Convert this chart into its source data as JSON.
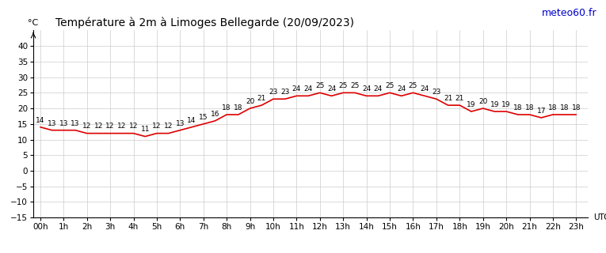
{
  "title": "Température à 2m à Limoges Bellegarde (20/09/2023)",
  "ylabel": "°C",
  "watermark": "meteo60.fr",
  "temperatures": [
    14,
    13,
    13,
    13,
    12,
    12,
    12,
    12,
    12,
    11,
    12,
    12,
    13,
    14,
    15,
    16,
    18,
    18,
    20,
    21,
    23,
    23,
    24,
    24,
    25,
    24,
    25,
    25,
    24,
    24,
    25,
    24,
    25,
    24,
    23,
    21,
    21,
    19,
    20,
    19,
    19,
    18,
    18,
    17,
    18,
    18,
    18
  ],
  "hours": [
    "00h",
    "1h",
    "2h",
    "3h",
    "4h",
    "5h",
    "6h",
    "7h",
    "8h",
    "9h",
    "10h",
    "11h",
    "12h",
    "13h",
    "14h",
    "15h",
    "16h",
    "17h",
    "18h",
    "19h",
    "20h",
    "21h",
    "22h",
    "23h"
  ],
  "line_color": "#dd0000",
  "background_color": "#ffffff",
  "grid_color": "#cccccc",
  "title_color": "#000000",
  "watermark_color": "#0000cc",
  "ylim_min": -15,
  "ylim_max": 45,
  "yticks": [
    -15,
    -10,
    -5,
    0,
    5,
    10,
    15,
    20,
    25,
    30,
    35,
    40
  ],
  "xlabel": "UTC",
  "font_size_title": 10,
  "font_size_ticks": 7.5,
  "font_size_data": 6.5,
  "font_size_watermark": 9
}
